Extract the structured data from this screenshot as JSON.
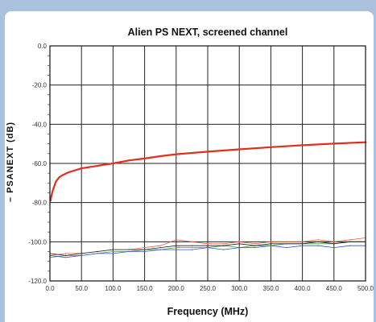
{
  "chart_data": {
    "type": "line",
    "title": "Alien PS NEXT, screened channel",
    "xlabel": "Frequency (MHz)",
    "ylabel": "– PSANEXT (dB)",
    "xlim": [
      0,
      500
    ],
    "ylim": [
      -120,
      0
    ],
    "xticks": [
      0,
      50,
      100,
      150,
      200,
      250,
      300,
      350,
      400,
      450,
      500
    ],
    "xtick_labels": [
      "0.0",
      "50.0",
      "100.0",
      "150.0",
      "200.0",
      "250.0",
      "300.0",
      "350.0",
      "400.0",
      "450.0",
      "500.0"
    ],
    "yticks": [
      0,
      -20,
      -40,
      -60,
      -80,
      -100,
      -120
    ],
    "ytick_labels": [
      "0.0",
      "-20.0",
      "-40.0",
      "-60.0",
      "-80.0",
      "-100.0",
      "-120.0"
    ],
    "grid": true,
    "series": [
      {
        "color": "#e03020",
        "width": 2.2,
        "x": [
          1,
          2,
          4,
          6,
          8,
          10,
          15,
          20,
          30,
          40,
          50,
          60,
          80,
          100,
          125,
          150,
          175,
          200,
          250,
          300,
          350,
          400,
          450,
          500
        ],
        "y": [
          -79,
          -77,
          -74.5,
          -72.5,
          -70.5,
          -69,
          -67,
          -66,
          -64.5,
          -63.5,
          -62.5,
          -62,
          -61,
          -60,
          -58.5,
          -57.5,
          -56.3,
          -55.3,
          -54,
          -52.8,
          -51.7,
          -50.7,
          -49.9,
          -49.2
        ]
      },
      {
        "color": "#e06040",
        "width": 0.8,
        "x": [
          0,
          25,
          50,
          75,
          100,
          125,
          150,
          175,
          200,
          225,
          250,
          275,
          300,
          325,
          350,
          375,
          400,
          425,
          450,
          475,
          500
        ],
        "y": [
          -107,
          -106,
          -106,
          -105,
          -104,
          -104,
          -103,
          -102,
          -99,
          -100,
          -101,
          -101,
          -100,
          -101,
          -100,
          -100,
          -100,
          -99,
          -100,
          -99,
          -98
        ]
      },
      {
        "color": "#40a040",
        "width": 0.8,
        "x": [
          0,
          25,
          50,
          75,
          100,
          125,
          150,
          175,
          200,
          225,
          250,
          275,
          300,
          325,
          350,
          375,
          400,
          425,
          450,
          475,
          500
        ],
        "y": [
          -108,
          -107,
          -107,
          -106,
          -105,
          -105,
          -104,
          -104,
          -103,
          -103,
          -103,
          -102,
          -103,
          -102,
          -102,
          -101,
          -101,
          -101,
          -101,
          -100,
          -100
        ]
      },
      {
        "color": "#3050d0",
        "width": 0.8,
        "x": [
          0,
          25,
          50,
          75,
          100,
          125,
          150,
          175,
          200,
          225,
          250,
          275,
          300,
          325,
          350,
          375,
          400,
          425,
          450,
          475,
          500
        ],
        "y": [
          -107,
          -108,
          -107,
          -106,
          -106,
          -105,
          -105,
          -104,
          -104,
          -104,
          -103,
          -104,
          -103,
          -103,
          -102,
          -103,
          -102,
          -102,
          -103,
          -102,
          -102
        ]
      },
      {
        "color": "#202020",
        "width": 0.8,
        "x": [
          0,
          25,
          50,
          75,
          100,
          125,
          150,
          175,
          200,
          225,
          250,
          275,
          300,
          325,
          350,
          375,
          400,
          425,
          450,
          475,
          500
        ],
        "y": [
          -106,
          -107,
          -106,
          -105,
          -104,
          -104,
          -104,
          -103,
          -102,
          -102,
          -102,
          -102,
          -101,
          -102,
          -101,
          -101,
          -101,
          -100,
          -101,
          -100,
          -100
        ]
      }
    ]
  }
}
